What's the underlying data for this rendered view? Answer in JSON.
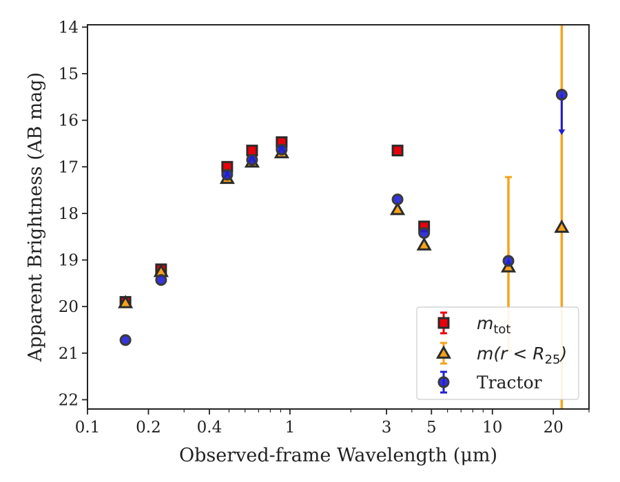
{
  "chart_data": {
    "type": "scatter",
    "xlabel": "Observed-frame Wavelength (μm)",
    "ylabel": "Apparent Brightness (AB mag)",
    "xscale": "log",
    "xlim": [
      0.1,
      30
    ],
    "ylim": [
      22.2,
      13.95
    ],
    "y_inverted": true,
    "x_ticks": [
      0.1,
      0.2,
      0.4,
      1,
      3,
      5,
      10,
      20
    ],
    "x_tick_labels": [
      "0.1",
      "0.2",
      "0.4",
      "1",
      "3",
      "5",
      "10",
      "20"
    ],
    "y_ticks": [
      14,
      15,
      16,
      17,
      18,
      19,
      20,
      21,
      22
    ],
    "y_tick_labels": [
      "14",
      "15",
      "16",
      "17",
      "18",
      "19",
      "20",
      "21",
      "22"
    ],
    "legend_position": "lower-right",
    "series": [
      {
        "legend_label": "m_tot",
        "label_main": "m",
        "label_sub": "tot",
        "marker": "square",
        "color": "#e8000b",
        "points": [
          {
            "x": 0.154,
            "y": 19.9
          },
          {
            "x": 0.231,
            "y": 19.2
          },
          {
            "x": 0.49,
            "y": 17.0
          },
          {
            "x": 0.65,
            "y": 16.65
          },
          {
            "x": 0.91,
            "y": 16.47
          },
          {
            "x": 3.4,
            "y": 16.65
          },
          {
            "x": 4.6,
            "y": 18.28
          }
        ]
      },
      {
        "legend_label": "m(r < R_25)",
        "label_main": "m(r < R",
        "label_sub": "25",
        "label_end": ")",
        "marker": "triangle",
        "color": "#f7a21b",
        "points": [
          {
            "x": 0.154,
            "y": 19.92
          },
          {
            "x": 0.231,
            "y": 19.25
          },
          {
            "x": 0.49,
            "y": 17.25
          },
          {
            "x": 0.65,
            "y": 16.9
          },
          {
            "x": 0.91,
            "y": 16.7
          },
          {
            "x": 3.4,
            "y": 17.92
          },
          {
            "x": 4.6,
            "y": 18.68
          },
          {
            "x": 12.0,
            "y": 19.15,
            "yerr_low": 17.22,
            "yerr_high": 20.95
          },
          {
            "x": 22.0,
            "y": 18.3,
            "yerr_low": 13.95,
            "yerr_high": 22.2
          }
        ]
      },
      {
        "legend_label": "Tractor",
        "marker": "circle",
        "color": "#1f1fd8",
        "points": [
          {
            "x": 0.154,
            "y": 20.72
          },
          {
            "x": 0.231,
            "y": 19.43
          },
          {
            "x": 0.49,
            "y": 17.17
          },
          {
            "x": 0.65,
            "y": 16.85
          },
          {
            "x": 0.91,
            "y": 16.63
          },
          {
            "x": 3.4,
            "y": 17.7
          },
          {
            "x": 4.6,
            "y": 18.42
          },
          {
            "x": 12.0,
            "y": 19.02
          },
          {
            "x": 22.0,
            "y": 15.45,
            "upper_limit_to": 16.3
          }
        ]
      }
    ]
  }
}
